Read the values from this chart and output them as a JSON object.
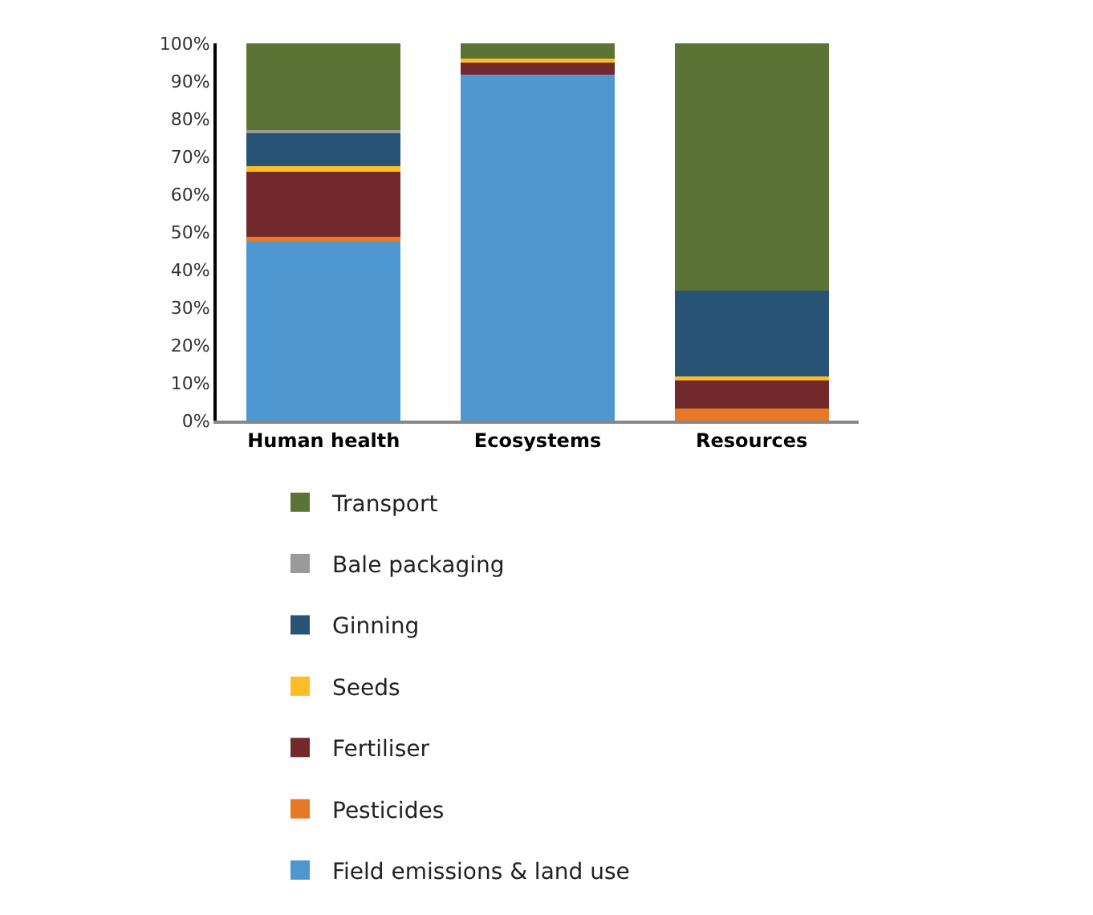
{
  "chart_data": {
    "type": "bar",
    "stacked": true,
    "categories": [
      "Human health",
      "Ecosystems",
      "Resources"
    ],
    "series": [
      {
        "name": "Field emissions & land use",
        "color": "#4f97d1",
        "values": [
          47.5,
          91.6,
          0
        ]
      },
      {
        "name": "Pesticides",
        "color": "#e77826",
        "values": [
          1.2,
          0,
          3.2
        ]
      },
      {
        "name": "Fertiliser",
        "color": "#71292b",
        "values": [
          17.3,
          3.2,
          7.6
        ]
      },
      {
        "name": "Seeds",
        "color": "#fdbd25",
        "values": [
          1.5,
          1.2,
          0.8
        ]
      },
      {
        "name": "Ginning",
        "color": "#285375",
        "values": [
          8.8,
          0,
          22.9
        ]
      },
      {
        "name": "Bale packaging",
        "color": "#9a9a9a",
        "values": [
          0.7,
          0,
          0
        ]
      },
      {
        "name": "Transport",
        "color": "#5b7436",
        "values": [
          23,
          4,
          65.5
        ]
      }
    ],
    "ylim": [
      0,
      100
    ],
    "yticks": [
      {
        "value": 0,
        "label": "0%"
      },
      {
        "value": 10,
        "label": "10%"
      },
      {
        "value": 20,
        "label": "20%"
      },
      {
        "value": 30,
        "label": "30%"
      },
      {
        "value": 40,
        "label": "40%"
      },
      {
        "value": 50,
        "label": "50%"
      },
      {
        "value": 60,
        "label": "60%"
      },
      {
        "value": 70,
        "label": "70%"
      },
      {
        "value": 80,
        "label": "80%"
      },
      {
        "value": 90,
        "label": "90%"
      },
      {
        "value": 100,
        "label": "100%"
      }
    ],
    "legend": "bottom"
  }
}
